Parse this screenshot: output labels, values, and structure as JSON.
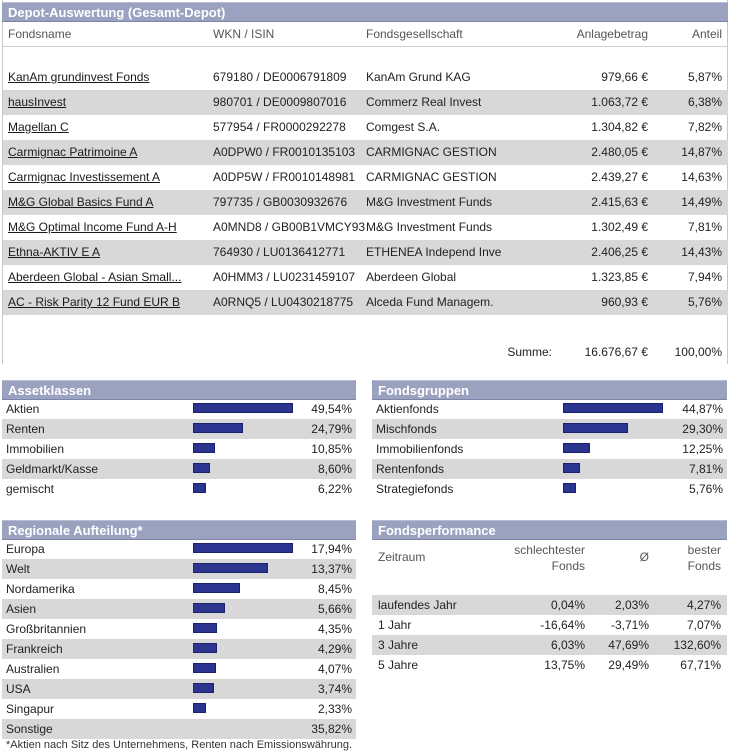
{
  "depot": {
    "title": "Depot-Auswertung (Gesamt-Depot)",
    "columns": {
      "name": "Fondsname",
      "wkn": "WKN / ISIN",
      "gesellschaft": "Fondsgesellschaft",
      "betrag": "Anlagebetrag",
      "anteil": "Anteil"
    },
    "rows": [
      {
        "name": "KanAm grundinvest Fonds",
        "wkn": "679180 / DE0006791809",
        "gesellschaft": "KanAm Grund KAG",
        "betrag": "979,66 €",
        "anteil": "5,87%"
      },
      {
        "name": "hausInvest",
        "wkn": "980701 / DE0009807016",
        "gesellschaft": "Commerz Real Invest",
        "betrag": "1.063,72 €",
        "anteil": "6,38%"
      },
      {
        "name": "Magellan C",
        "wkn": "577954 / FR0000292278",
        "gesellschaft": "Comgest S.A.",
        "betrag": "1.304,82 €",
        "anteil": "7,82%"
      },
      {
        "name": "Carmignac Patrimoine A",
        "wkn": "A0DPW0 / FR0010135103",
        "gesellschaft": "CARMIGNAC GESTION",
        "betrag": "2.480,05 €",
        "anteil": "14,87%"
      },
      {
        "name": "Carmignac Investissement A",
        "wkn": "A0DP5W / FR0010148981",
        "gesellschaft": "CARMIGNAC GESTION",
        "betrag": "2.439,27 €",
        "anteil": "14,63%"
      },
      {
        "name": "M&G Global Basics Fund A",
        "wkn": "797735 / GB0030932676",
        "gesellschaft": "M&G Investment Funds",
        "betrag": "2.415,63 €",
        "anteil": "14,49%"
      },
      {
        "name": "M&G Optimal Income Fund A-H",
        "wkn": "A0MND8 / GB00B1VMCY93",
        "gesellschaft": "M&G Investment Funds",
        "betrag": "1.302,49 €",
        "anteil": "7,81%"
      },
      {
        "name": "Ethna-AKTIV E A",
        "wkn": "764930 / LU0136412771",
        "gesellschaft": "ETHENEA Independ Inve",
        "betrag": "2.406,25 €",
        "anteil": "14,43%"
      },
      {
        "name": "Aberdeen Global - Asian Small...",
        "wkn": "A0HMM3 / LU0231459107",
        "gesellschaft": "Aberdeen Global",
        "betrag": "1.323,85 €",
        "anteil": "7,94%"
      },
      {
        "name": "AC - Risk Parity 12 Fund EUR B",
        "wkn": "A0RNQ5 / LU0430218775",
        "gesellschaft": "Alceda Fund Managem.",
        "betrag": "960,93 €",
        "anteil": "5,76%"
      }
    ],
    "summe_label": "Summe:",
    "summe_betrag": "16.676,67 €",
    "summe_anteil": "100,00%"
  },
  "assetklassen": {
    "title": "Assetklassen",
    "items": [
      {
        "label": "Aktien",
        "value": "49,54%",
        "pct": 49.54
      },
      {
        "label": "Renten",
        "value": "24,79%",
        "pct": 24.79
      },
      {
        "label": "Immobilien",
        "value": "10,85%",
        "pct": 10.85
      },
      {
        "label": "Geldmarkt/Kasse",
        "value": "8,60%",
        "pct": 8.6
      },
      {
        "label": "gemischt",
        "value": "6,22%",
        "pct": 6.22
      }
    ]
  },
  "fondsgruppen": {
    "title": "Fondsgruppen",
    "items": [
      {
        "label": "Aktienfonds",
        "value": "44,87%",
        "pct": 44.87
      },
      {
        "label": "Mischfonds",
        "value": "29,30%",
        "pct": 29.3
      },
      {
        "label": "Immobilienfonds",
        "value": "12,25%",
        "pct": 12.25
      },
      {
        "label": "Rentenfonds",
        "value": "7,81%",
        "pct": 7.81
      },
      {
        "label": "Strategiefonds",
        "value": "5,76%",
        "pct": 5.76
      }
    ]
  },
  "regionen": {
    "title": "Regionale Aufteilung*",
    "items": [
      {
        "label": "Europa",
        "value": "17,94%",
        "pct": 17.94
      },
      {
        "label": "Welt",
        "value": "13,37%",
        "pct": 13.37
      },
      {
        "label": "Nordamerika",
        "value": "8,45%",
        "pct": 8.45
      },
      {
        "label": "Asien",
        "value": "5,66%",
        "pct": 5.66
      },
      {
        "label": "Großbritannien",
        "value": "4,35%",
        "pct": 4.35
      },
      {
        "label": "Frankreich",
        "value": "4,29%",
        "pct": 4.29
      },
      {
        "label": "Australien",
        "value": "4,07%",
        "pct": 4.07
      },
      {
        "label": "USA",
        "value": "3,74%",
        "pct": 3.74
      },
      {
        "label": "Singapur",
        "value": "2,33%",
        "pct": 2.33
      },
      {
        "label": "Sonstige",
        "value": "35,82%",
        "pct": null
      }
    ],
    "footnote": "*Aktien nach Sitz des Unternehmens, Renten nach Emissionswährung."
  },
  "performance": {
    "title": "Fondsperformance",
    "head": {
      "zeitraum": "Zeitraum",
      "worst1": "schlechtester",
      "worst2": "Fonds",
      "avg": "Ø",
      "best1": "bester",
      "best2": "Fonds"
    },
    "rows": [
      {
        "zeitraum": "laufendes Jahr",
        "worst": "0,04%",
        "avg": "2,03%",
        "best": "4,27%"
      },
      {
        "zeitraum": "1 Jahr",
        "worst": "-16,64%",
        "avg": "-3,71%",
        "best": "7,07%"
      },
      {
        "zeitraum": "3 Jahre",
        "worst": "6,03%",
        "avg": "47,69%",
        "best": "132,60%"
      },
      {
        "zeitraum": "5 Jahre",
        "worst": "13,75%",
        "avg": "29,49%",
        "best": "67,71%"
      }
    ]
  },
  "colors": {
    "header": "#9aa2c0",
    "bar": "#2b3590",
    "alt_row": "#d8d8d8"
  }
}
